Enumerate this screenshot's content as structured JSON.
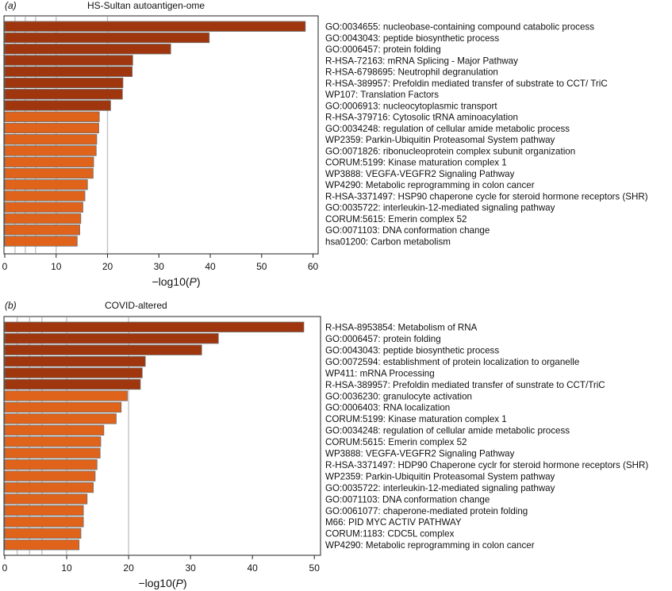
{
  "chart_data": [
    {
      "type": "bar",
      "orientation": "horizontal",
      "panel_label": "(a)",
      "title": "HS-Sultan autoantigen-ome",
      "xlabel": "−log10(",
      "xlabel_var": "P",
      "xlabel_close": ")",
      "xlim": [
        0,
        61
      ],
      "ticks": [
        0,
        10,
        20,
        30,
        40,
        50,
        60
      ],
      "gridlines": [
        2,
        4,
        6,
        10,
        20
      ],
      "categories": [
        "GO:0034655: nucleobase-containing compound catabolic process",
        "GO:0043043: peptide biosynthetic process",
        "GO:0006457: protein folding",
        "R-HSA-72163: mRNA Splicing - Major Pathway",
        "R-HSA-6798695: Neutrophil degranulation",
        "R-HSA-389957: Prefoldin mediated transfer of substrate to CCT/ TriC",
        "WP107: Translation Factors",
        "GO:0006913: nucleocytoplasmic transport",
        "R-HSA-379716: Cytosolic tRNA aminoacylation",
        "GO:0034248: regulation of cellular amide metabolic process",
        "WP2359: Parkin-Ubiquitin Proteasomal System pathway",
        "GO:0071826: ribonucleoprotein complex subunit organization",
        "CORUM:5199: Kinase maturation complex 1",
        "WP3888: VEGFA-VEGFR2 Signaling Pathway",
        "WP4290: Metabolic reprogramming in colon cancer",
        "R-HSA-3371497: HSP90 chaperone cycle for steroid hormone receptors (SHR)",
        "GO:0035722: interleukin-12-mediated signaling pathway",
        "CORUM:5615: Emerin complex 52",
        "GO:0071103: DNA conformation change",
        "hsa01200: Carbon metabolism"
      ],
      "values": [
        58.5,
        39.8,
        32.3,
        24.9,
        24.8,
        23.0,
        22.9,
        20.6,
        18.4,
        18.3,
        17.9,
        17.8,
        17.3,
        17.2,
        16.1,
        15.6,
        15.2,
        14.8,
        14.6,
        14.1
      ],
      "colors": [
        "#a0360e",
        "#a0360e",
        "#a0360e",
        "#a0360e",
        "#a0360e",
        "#a0360e",
        "#a0360e",
        "#a0360e",
        "#e0631b",
        "#e0631b",
        "#e0631b",
        "#e0631b",
        "#e0631b",
        "#e0631b",
        "#e0631b",
        "#e0631b",
        "#e0631b",
        "#e0631b",
        "#e0631b",
        "#e0631b"
      ]
    },
    {
      "type": "bar",
      "orientation": "horizontal",
      "panel_label": "(b)",
      "title": "COVID-altered",
      "xlabel": "−log10(",
      "xlabel_var": "P",
      "xlabel_close": ")",
      "xlim": [
        0,
        51
      ],
      "ticks": [
        0,
        10,
        20,
        30,
        40,
        50
      ],
      "gridlines": [
        2,
        4,
        6,
        10,
        20
      ],
      "categories": [
        "R-HSA-8953854: Metabolism of RNA",
        "GO:0006457: protein folding",
        "GO:0043043: peptide biosynthetic process",
        "GO:0072594: establishment of protein localization to organelle",
        "WP411: mRNA Processing",
        "R-HSA-389957: Prefoldin mediated transfer of sunstrate to CCT/TriC",
        "GO:0036230: granulocyte activation",
        "GO:0006403: RNA localization",
        "CORUM:5199: Kinase maturation complex 1",
        "GO:0034248: regulation of cellular amide metabolic process",
        "CORUM:5615: Emerin complex 52",
        "WP3888: VEGFA-VEGFR2 Signaling Pathway",
        "R-HSA-3371497: HDP90 Chaperone cyclr for steroid hormone receptors (SHR)",
        "WP2359: Parkin-Ubiquitin Proteasomal System pathway",
        "GO:0035722: interleukin-12-mediated signaling pathway",
        "GO:0071103: DNA conformation change",
        "GO:0061077: chaperone-mediated protein folding",
        "M66: PID MYC ACTIV PATHWAY",
        "CORUM:1183: CDC5L complex",
        "WP4290: Metabolic reprogramming in colon cancer"
      ],
      "values": [
        48.3,
        34.5,
        31.8,
        22.7,
        22.2,
        21.9,
        19.8,
        18.8,
        18.0,
        16.0,
        15.5,
        15.4,
        14.9,
        14.6,
        14.3,
        13.3,
        12.7,
        12.7,
        12.3,
        12.0
      ],
      "colors": [
        "#a0360e",
        "#a0360e",
        "#a0360e",
        "#a0360e",
        "#a0360e",
        "#a0360e",
        "#e0631b",
        "#e0631b",
        "#e0631b",
        "#e0631b",
        "#e0631b",
        "#e0631b",
        "#e0631b",
        "#e0631b",
        "#e0631b",
        "#e0631b",
        "#e0631b",
        "#e0631b",
        "#e0631b",
        "#e0631b"
      ]
    }
  ]
}
